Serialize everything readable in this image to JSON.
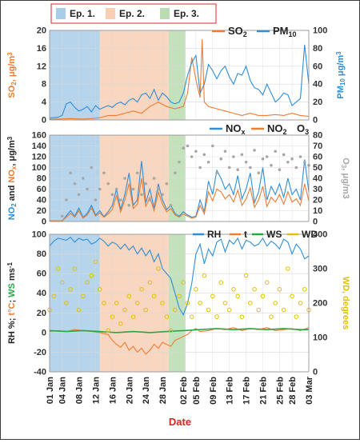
{
  "colors": {
    "ep1": "#a9cce9",
    "ep2": "#f7cfb4",
    "ep3": "#b9ddb0",
    "so2": "#ed7d31",
    "pm10": "#2e8ed6",
    "nox": "#2e8ed6",
    "no2": "#ed7d31",
    "o3": "#a6a6a6",
    "rh": "#2e8ed6",
    "t": "#ed7d31",
    "ws": "#27a844",
    "wd": "#e0c000",
    "date_label": "#e02020",
    "grid": "#d9d9d9",
    "axis_text": "#333333"
  },
  "chart_data": [
    {
      "type": "line",
      "panel": "top",
      "episodes": [
        {
          "label": "Ep. 1.",
          "start": "01 Jan",
          "end": "13 Jan"
        },
        {
          "label": "Ep. 2.",
          "start": "14 Jan",
          "end": "31 Jan"
        },
        {
          "label": "Ep. 3.",
          "start": "01 Feb",
          "end": "05 Feb"
        }
      ],
      "x_ticks": [
        "01 Jan",
        "04 Jan",
        "08 Jan",
        "12 Jan",
        "16 Jan",
        "20 Jan",
        "24 Jan",
        "28 Jan",
        "02 Feb",
        "05 Feb",
        "09 Feb",
        "13 Feb",
        "17 Feb",
        "21 Feb",
        "25 Feb",
        "28 Feb",
        "03 Mar"
      ],
      "ylabel_left": "SO2, μg/m3",
      "ylabel_right": "PM10 μg/m3",
      "ylim_left": [
        0,
        20
      ],
      "ylim_right": [
        0,
        100
      ],
      "yticks_left": [
        "0",
        "4",
        "8",
        "12",
        "16",
        "20"
      ],
      "yticks_right": [
        "0",
        "20",
        "40",
        "60",
        "80",
        "100"
      ],
      "series": [
        {
          "name": "SO2",
          "axis": "left",
          "x": [
            0,
            2,
            5,
            8,
            10,
            12,
            14,
            16,
            18,
            20,
            22,
            24,
            26,
            28,
            30,
            32,
            33,
            34,
            35,
            36,
            36.5,
            37,
            38,
            40,
            42,
            44,
            46,
            48,
            50,
            52,
            54,
            56,
            58,
            60,
            62
          ],
          "y": [
            0.1,
            0.2,
            0.3,
            0.2,
            0.3,
            0.5,
            1.0,
            1.0,
            1.5,
            2.0,
            1.5,
            3.0,
            4.0,
            3.0,
            2.5,
            3.0,
            6.0,
            14.0,
            9.0,
            5.0,
            18.0,
            4.0,
            3.0,
            2.5,
            2.0,
            1.5,
            1.0,
            1.5,
            1.0,
            1.0,
            1.2,
            1.0,
            1.5,
            1.0,
            0.8
          ]
        },
        {
          "name": "PM10",
          "axis": "right",
          "x": [
            0,
            2,
            3,
            4,
            5,
            6,
            7,
            8,
            9,
            10,
            11,
            12,
            13,
            14,
            15,
            16,
            17,
            18,
            19,
            20,
            21,
            22,
            23,
            24,
            25,
            26,
            27,
            28,
            29,
            30,
            31,
            32,
            33,
            34,
            35,
            36,
            37,
            38,
            39,
            40,
            41,
            42,
            43,
            44,
            45,
            46,
            47,
            48,
            49,
            50,
            51,
            52,
            53,
            54,
            55,
            56,
            57,
            58,
            59,
            60,
            61,
            62
          ],
          "y": [
            2,
            3,
            5,
            18,
            20,
            14,
            10,
            12,
            15,
            9,
            16,
            12,
            14,
            16,
            14,
            18,
            20,
            17,
            22,
            24,
            20,
            28,
            30,
            24,
            34,
            22,
            30,
            26,
            20,
            18,
            20,
            30,
            50,
            64,
            72,
            30,
            40,
            62,
            55,
            46,
            55,
            60,
            48,
            40,
            52,
            50,
            60,
            44,
            36,
            34,
            28,
            40,
            30,
            20,
            24,
            30,
            28,
            16,
            20,
            24,
            84,
            40
          ]
        }
      ]
    },
    {
      "type": "line",
      "panel": "middle",
      "x_ticks": [
        "01 Jan",
        "04 Jan",
        "08 Jan",
        "12 Jan",
        "16 Jan",
        "20 Jan",
        "24 Jan",
        "28 Jan",
        "02 Feb",
        "05 Feb",
        "09 Feb",
        "13 Feb",
        "17 Feb",
        "21 Feb",
        "25 Feb",
        "28 Feb",
        "03 Mar"
      ],
      "ylabel_left": "NO2 and NOx, μg/m3",
      "ylabel_right": "O3, μg/m3",
      "ylim_left": [
        0,
        160
      ],
      "ylim_right": [
        0,
        80
      ],
      "yticks_left": [
        "0",
        "20",
        "40",
        "60",
        "80",
        "100",
        "120",
        "140",
        "160"
      ],
      "yticks_right": [
        "0",
        "10",
        "20",
        "30",
        "40",
        "50",
        "60",
        "70",
        "80"
      ],
      "series": [
        {
          "name": "NOx",
          "axis": "left",
          "x": [
            0,
            3,
            5,
            6,
            7,
            8,
            9,
            10,
            11,
            12,
            13,
            14,
            15,
            16,
            17,
            18,
            19,
            20,
            21,
            22,
            23,
            24,
            25,
            26,
            27,
            28,
            29,
            30,
            31,
            32,
            33,
            34,
            35,
            36,
            37,
            38,
            39,
            40,
            41,
            42,
            43,
            44,
            45,
            46,
            47,
            48,
            49,
            50,
            51,
            52,
            53,
            54,
            55,
            56,
            57,
            58,
            59,
            60,
            61,
            62
          ],
          "y": [
            1,
            1,
            20,
            10,
            25,
            8,
            15,
            30,
            12,
            20,
            9,
            18,
            30,
            60,
            22,
            50,
            90,
            30,
            40,
            112,
            35,
            60,
            25,
            70,
            40,
            22,
            30,
            15,
            10,
            18,
            12,
            8,
            10,
            40,
            18,
            75,
            50,
            95,
            80,
            60,
            70,
            50,
            85,
            42,
            60,
            90,
            35,
            55,
            100,
            40,
            65,
            50,
            70,
            45,
            80,
            50,
            60,
            40,
            115,
            55
          ]
        },
        {
          "name": "NO2",
          "axis": "left",
          "x": [
            0,
            3,
            5,
            6,
            7,
            8,
            9,
            10,
            11,
            12,
            13,
            14,
            15,
            16,
            17,
            18,
            19,
            20,
            21,
            22,
            23,
            24,
            25,
            26,
            27,
            28,
            29,
            30,
            31,
            32,
            33,
            34,
            35,
            36,
            37,
            38,
            39,
            40,
            41,
            42,
            43,
            44,
            45,
            46,
            47,
            48,
            49,
            50,
            51,
            52,
            53,
            54,
            55,
            56,
            57,
            58,
            59,
            60,
            61,
            62
          ],
          "y": [
            1,
            1,
            15,
            8,
            20,
            6,
            12,
            25,
            10,
            16,
            8,
            14,
            22,
            48,
            18,
            40,
            70,
            24,
            32,
            80,
            28,
            45,
            20,
            55,
            32,
            18,
            24,
            12,
            8,
            14,
            10,
            6,
            8,
            30,
            14,
            55,
            38,
            60,
            55,
            42,
            50,
            36,
            58,
            30,
            42,
            62,
            26,
            40,
            65,
            28,
            45,
            36,
            50,
            32,
            55,
            36,
            42,
            30,
            70,
            38
          ]
        },
        {
          "name": "O3",
          "axis": "right",
          "style": "scatter",
          "x": [
            3,
            4,
            5,
            6,
            7,
            8,
            9,
            10,
            11,
            12,
            13,
            14,
            15,
            16,
            17,
            18,
            19,
            20,
            21,
            22,
            23,
            24,
            25,
            26,
            27,
            28,
            29,
            30,
            31,
            32,
            33,
            34,
            35,
            36,
            37,
            38,
            39,
            40,
            41,
            42,
            43,
            44,
            45,
            46,
            47,
            48,
            49,
            50,
            51,
            52,
            53,
            54,
            55,
            56,
            57,
            58,
            59,
            60,
            61,
            62
          ],
          "y": [
            5,
            20,
            45,
            35,
            25,
            40,
            30,
            50,
            20,
            30,
            45,
            35,
            25,
            30,
            20,
            40,
            15,
            30,
            45,
            25,
            35,
            20,
            40,
            30,
            25,
            35,
            15,
            45,
            55,
            68,
            70,
            60,
            65,
            50,
            62,
            55,
            70,
            45,
            58,
            65,
            50,
            60,
            48,
            62,
            55,
            50,
            66,
            45,
            58,
            60,
            52,
            65,
            48,
            62,
            55,
            58,
            50,
            60,
            55,
            52
          ]
        }
      ]
    },
    {
      "type": "line",
      "panel": "bottom",
      "x_ticks": [
        "01 Jan",
        "04 Jan",
        "08 Jan",
        "12 Jan",
        "16 Jan",
        "20 Jan",
        "24 Jan",
        "28 Jan",
        "02 Feb",
        "05 Feb",
        "09 Feb",
        "13 Feb",
        "17 Feb",
        "21 Feb",
        "25 Feb",
        "28 Feb",
        "03 Mar"
      ],
      "xlabel": "Date",
      "ylabel_left": "RH %; t°C; WS ms-1",
      "ylabel_right": "WD, degrees",
      "ylim_left": [
        -40,
        100
      ],
      "ylim_right": [
        0,
        400
      ],
      "yticks_left": [
        "-40",
        "-20",
        "0",
        "20",
        "40",
        "60",
        "80",
        "100"
      ],
      "yticks_right": [
        "0",
        "100",
        "200",
        "300",
        "400"
      ],
      "series": [
        {
          "name": "RH",
          "axis": "left",
          "x": [
            0,
            1,
            2,
            3,
            4,
            5,
            6,
            7,
            8,
            9,
            10,
            11,
            12,
            13,
            14,
            15,
            16,
            17,
            18,
            19,
            20,
            21,
            22,
            23,
            24,
            25,
            26,
            27,
            28,
            29,
            30,
            31,
            32,
            33,
            34,
            35,
            36,
            37,
            38,
            39,
            40,
            41,
            42,
            43,
            44,
            45,
            46,
            47,
            48,
            49,
            50,
            51,
            52,
            53,
            54,
            55,
            56,
            57,
            58,
            59,
            60,
            61,
            62
          ],
          "y": [
            88,
            93,
            96,
            95,
            94,
            97,
            92,
            96,
            94,
            95,
            90,
            92,
            96,
            93,
            88,
            92,
            90,
            85,
            90,
            84,
            88,
            80,
            86,
            78,
            84,
            72,
            80,
            65,
            60,
            55,
            40,
            25,
            18,
            30,
            50,
            80,
            90,
            70,
            85,
            78,
            92,
            95,
            82,
            94,
            90,
            96,
            85,
            94,
            92,
            88,
            90,
            96,
            88,
            93,
            90,
            85,
            95,
            92,
            80,
            90,
            85,
            75,
            78
          ]
        },
        {
          "name": "t",
          "axis": "left",
          "x": [
            0,
            2,
            4,
            6,
            8,
            10,
            12,
            14,
            15,
            16,
            17,
            18,
            19,
            20,
            21,
            22,
            23,
            24,
            25,
            26,
            27,
            28,
            29,
            30,
            31,
            32,
            33,
            34,
            35,
            36,
            38,
            40,
            42,
            44,
            46,
            48,
            50,
            52,
            54,
            56,
            58,
            60,
            62
          ],
          "y": [
            1,
            2,
            1,
            3,
            2,
            1,
            0,
            -2,
            -8,
            -12,
            -15,
            -10,
            -18,
            -14,
            -20,
            -16,
            -22,
            -18,
            -12,
            -16,
            -10,
            -12,
            -14,
            -8,
            -6,
            -4,
            -2,
            2,
            4,
            1,
            2,
            4,
            3,
            5,
            2,
            4,
            3,
            5,
            2,
            3,
            4,
            2,
            5
          ]
        },
        {
          "name": "WS",
          "axis": "left",
          "x": [
            0,
            4,
            8,
            12,
            16,
            20,
            24,
            28,
            32,
            36,
            40,
            44,
            48,
            52,
            56,
            60,
            62
          ],
          "y": [
            2,
            1,
            2,
            1,
            0,
            1,
            0,
            1,
            2,
            3,
            4,
            3,
            4,
            3,
            4,
            3,
            3
          ]
        },
        {
          "name": "WD",
          "axis": "right",
          "style": "scatter",
          "x": [
            0,
            1,
            2,
            3,
            4,
            5,
            6,
            7,
            8,
            9,
            10,
            11,
            12,
            13,
            14,
            15,
            16,
            17,
            18,
            19,
            20,
            21,
            22,
            23,
            24,
            25,
            26,
            27,
            28,
            29,
            30,
            31,
            32,
            33,
            34,
            35,
            36,
            37,
            38,
            39,
            40,
            41,
            42,
            43,
            44,
            45,
            46,
            47,
            48,
            49,
            50,
            51,
            52,
            53,
            54,
            55,
            56,
            57,
            58,
            59,
            60,
            61,
            62
          ],
          "y": [
            180,
            220,
            300,
            260,
            200,
            240,
            300,
            180,
            220,
            260,
            280,
            320,
            240,
            200,
            120,
            160,
            200,
            140,
            180,
            220,
            160,
            200,
            240,
            180,
            260,
            220,
            300,
            200,
            160,
            120,
            180,
            220,
            260,
            200,
            160,
            240,
            200,
            280,
            180,
            220,
            160,
            260,
            200,
            180,
            240,
            220,
            160,
            280,
            200,
            240,
            180,
            220,
            260,
            160,
            200,
            240,
            180,
            300,
            220,
            160,
            200,
            240,
            180
          ]
        }
      ]
    }
  ]
}
